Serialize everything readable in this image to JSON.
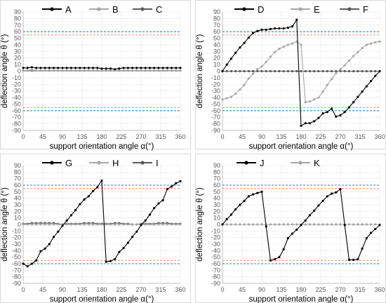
{
  "chart_data": [
    {
      "type": "line",
      "xlabel": "support orientation angle α(°)",
      "ylabel": "deflection angle θ (°)",
      "xlim": [
        0,
        360
      ],
      "ylim": [
        -90,
        90
      ],
      "xticks": [
        "0",
        "45",
        "90",
        "135",
        "180",
        "225",
        "270",
        "315",
        "360"
      ],
      "yticks": [
        "90",
        "80",
        "70",
        "60",
        "50",
        "40",
        "30",
        "20",
        "10",
        "0",
        "-10",
        "-20",
        "-30",
        "-40",
        "-50",
        "-60",
        "-70",
        "-80",
        "-90"
      ],
      "reference_lines": [
        {
          "y": 60,
          "color": "#2e86c1"
        },
        {
          "y": 55,
          "color": "#f39c6b"
        },
        {
          "y": -55,
          "color": "#f39c6b"
        },
        {
          "y": -60,
          "color": "#2e86c1"
        }
      ],
      "legend_position": "top",
      "series": [
        {
          "name": "A",
          "color": "#000000",
          "x": [
            0,
            10,
            20,
            30,
            40,
            50,
            60,
            70,
            80,
            90,
            100,
            110,
            120,
            130,
            140,
            150,
            160,
            170,
            180,
            190,
            200,
            210,
            220,
            230,
            240,
            250,
            260,
            270,
            280,
            290,
            300,
            310,
            320,
            330,
            340,
            350,
            360
          ],
          "y": [
            5,
            5,
            6,
            5,
            5,
            5,
            5,
            5,
            5,
            5,
            5,
            5,
            5,
            5,
            5,
            5,
            5,
            5,
            4,
            4,
            4,
            3,
            4,
            5,
            5,
            5,
            5,
            5,
            5,
            5,
            5,
            5,
            5,
            5,
            5,
            5,
            5
          ]
        },
        {
          "name": "B",
          "color": "#a6a6a6",
          "x": [
            0,
            10,
            20,
            30,
            40,
            50,
            60,
            70,
            80,
            90,
            100,
            110,
            120,
            130,
            140,
            150,
            160,
            170,
            180,
            190,
            200,
            210,
            220,
            230,
            240,
            250,
            260,
            270,
            280,
            290,
            300,
            310,
            320,
            330,
            340,
            350,
            360
          ],
          "y": [
            1,
            1,
            2,
            1,
            1,
            1,
            1,
            1,
            1,
            1,
            1,
            1,
            1,
            1,
            1,
            1,
            1,
            1,
            1,
            1,
            1,
            1,
            1,
            1,
            1,
            1,
            1,
            1,
            1,
            1,
            1,
            1,
            1,
            1,
            1,
            1,
            1
          ]
        },
        {
          "name": "C",
          "color": "#595959",
          "x": [
            0,
            10,
            20,
            30,
            40,
            50,
            60,
            70,
            80,
            90,
            100,
            110,
            120,
            130,
            140,
            150,
            160,
            170,
            180,
            190,
            200,
            210,
            220,
            230,
            240,
            250,
            260,
            270,
            280,
            290,
            300,
            310,
            320,
            330,
            340,
            350,
            360
          ],
          "y": [
            1,
            1,
            1,
            1,
            1,
            1,
            1,
            1,
            1,
            1,
            1,
            1,
            1,
            1,
            1,
            1,
            1,
            1,
            1,
            1,
            1,
            1,
            1,
            1,
            1,
            1,
            1,
            1,
            1,
            1,
            1,
            1,
            1,
            1,
            1,
            1,
            1
          ]
        }
      ]
    },
    {
      "type": "line",
      "xlabel": "support orientation angle α(°)",
      "ylabel": "deflection angle θ (°)",
      "xlim": [
        0,
        360
      ],
      "ylim": [
        -90,
        90
      ],
      "xticks": [
        "0",
        "45",
        "90",
        "135",
        "180",
        "225",
        "270",
        "315",
        "360"
      ],
      "yticks": [
        "90",
        "80",
        "70",
        "60",
        "50",
        "40",
        "30",
        "20",
        "10",
        "0",
        "-10",
        "-20",
        "-30",
        "-40",
        "-50",
        "-60",
        "-70",
        "-80",
        "-90"
      ],
      "reference_lines": [
        {
          "y": 60,
          "color": "#2e86c1"
        },
        {
          "y": 55,
          "color": "#f39c6b"
        },
        {
          "y": -55,
          "color": "#f39c6b"
        },
        {
          "y": -60,
          "color": "#2e86c1"
        }
      ],
      "legend_position": "top",
      "series": [
        {
          "name": "D",
          "color": "#000000",
          "x": [
            0,
            10,
            20,
            30,
            40,
            50,
            60,
            70,
            80,
            90,
            100,
            110,
            120,
            130,
            140,
            150,
            160,
            170,
            180,
            190,
            200,
            210,
            220,
            230,
            240,
            250,
            260,
            270,
            280,
            290,
            300,
            310,
            320,
            330,
            340,
            350,
            360
          ],
          "y": [
            0,
            10,
            19,
            28,
            36,
            43,
            51,
            58,
            61,
            63,
            63,
            64,
            65,
            65,
            65,
            66,
            68,
            78,
            -83,
            -79,
            -79,
            -76,
            -71,
            -64,
            -62,
            -57,
            -69,
            -67,
            -62,
            -55,
            -47,
            -39,
            -31,
            -23,
            -15,
            -7,
            0
          ]
        },
        {
          "name": "E",
          "color": "#a6a6a6",
          "x": [
            0,
            10,
            20,
            30,
            40,
            50,
            60,
            70,
            80,
            90,
            100,
            110,
            120,
            130,
            140,
            150,
            160,
            170,
            180,
            190,
            200,
            210,
            220,
            230,
            240,
            250,
            260,
            270,
            280,
            290,
            300,
            310,
            320,
            330,
            340,
            350,
            360
          ],
          "y": [
            -43,
            -41,
            -39,
            -34,
            -28,
            -21,
            -11,
            -4,
            3,
            7,
            14,
            22,
            29,
            34,
            37,
            40,
            42,
            45,
            40,
            -47,
            -46,
            -43,
            -40,
            -31,
            -21,
            -12,
            -3,
            3,
            9,
            16,
            23,
            29,
            35,
            40,
            42,
            44,
            45
          ]
        },
        {
          "name": "F",
          "color": "#595959",
          "x": [
            0,
            10,
            20,
            30,
            40,
            50,
            60,
            70,
            80,
            90,
            100,
            110,
            120,
            130,
            140,
            150,
            160,
            170,
            180,
            190,
            200,
            210,
            220,
            230,
            240,
            250,
            260,
            270,
            280,
            290,
            300,
            310,
            320,
            330,
            340,
            350,
            360
          ],
          "y": [
            0,
            0,
            0,
            0,
            0,
            0,
            0,
            0,
            0,
            0,
            0,
            0,
            0,
            0,
            0,
            0,
            0,
            0,
            0,
            0,
            0,
            0,
            0,
            0,
            0,
            0,
            0,
            0,
            0,
            0,
            0,
            0,
            0,
            0,
            0,
            0,
            0
          ]
        }
      ]
    },
    {
      "type": "line",
      "xlabel": "support orientation angle α(°)",
      "ylabel": "deflection angle θ (°)",
      "xlim": [
        0,
        360
      ],
      "ylim": [
        -90,
        90
      ],
      "xticks": [
        "0",
        "45",
        "90",
        "135",
        "180",
        "225",
        "270",
        "315",
        "360"
      ],
      "yticks": [
        "90",
        "80",
        "70",
        "60",
        "50",
        "40",
        "30",
        "20",
        "10",
        "0",
        "-10",
        "-20",
        "-30",
        "-40",
        "-50",
        "-60",
        "-70",
        "-80",
        "-90"
      ],
      "reference_lines": [
        {
          "y": 60,
          "color": "#2e86c1"
        },
        {
          "y": 55,
          "color": "#f39c6b"
        },
        {
          "y": -55,
          "color": "#f39c6b"
        },
        {
          "y": -60,
          "color": "#2e86c1"
        }
      ],
      "legend_position": "top",
      "series": [
        {
          "name": "G",
          "color": "#000000",
          "x": [
            0,
            10,
            20,
            30,
            40,
            50,
            60,
            70,
            80,
            90,
            100,
            110,
            120,
            130,
            140,
            150,
            160,
            170,
            180,
            190,
            200,
            210,
            220,
            230,
            240,
            250,
            260,
            270,
            280,
            290,
            300,
            310,
            320,
            330,
            340,
            350,
            360
          ],
          "y": [
            -60,
            -64,
            -60,
            -55,
            -41,
            -37,
            -30,
            -19,
            -11,
            -2,
            6,
            14,
            22,
            31,
            38,
            43,
            51,
            57,
            67,
            -57,
            -56,
            -53,
            -42,
            -36,
            -28,
            -19,
            -11,
            -1,
            6,
            15,
            25,
            32,
            37,
            54,
            58,
            63,
            66
          ]
        },
        {
          "name": "H",
          "color": "#a6a6a6",
          "x": [
            0,
            10,
            20,
            30,
            40,
            50,
            60,
            70,
            80,
            90,
            100,
            110,
            120,
            130,
            140,
            150,
            160,
            170,
            180,
            190,
            200,
            210,
            220,
            230,
            240,
            250,
            260,
            270,
            280,
            290,
            300,
            310,
            320,
            330,
            340,
            350,
            360
          ],
          "y": [
            0,
            0,
            0,
            0,
            0,
            0,
            0,
            0,
            0,
            0,
            0,
            0,
            0,
            0,
            0,
            0,
            0,
            0,
            0,
            0,
            0,
            0,
            0,
            0,
            0,
            0,
            0,
            0,
            0,
            0,
            0,
            0,
            0,
            0,
            0,
            0,
            0
          ]
        },
        {
          "name": "I",
          "color": "#595959",
          "x": [
            0,
            10,
            20,
            30,
            40,
            50,
            60,
            70,
            80,
            90,
            100,
            110,
            120,
            130,
            140,
            150,
            160,
            170,
            180,
            190,
            200,
            210,
            220,
            230,
            240,
            250,
            260,
            270,
            280,
            290,
            300,
            310,
            320,
            330,
            340,
            350,
            360
          ],
          "y": [
            1,
            1,
            2,
            2,
            2,
            2,
            2,
            2,
            1,
            0,
            1,
            1,
            1,
            1,
            2,
            2,
            2,
            1,
            1,
            1,
            1,
            2,
            2,
            1,
            1,
            0,
            0,
            1,
            1,
            1,
            1,
            2,
            2,
            2,
            1,
            1,
            1
          ]
        }
      ]
    },
    {
      "type": "line",
      "xlabel": "support orientation angle α(°)",
      "ylabel": "deflection angle θ (°)",
      "xlim": [
        0,
        360
      ],
      "ylim": [
        -90,
        90
      ],
      "xticks": [
        "0",
        "45",
        "90",
        "135",
        "180",
        "225",
        "270",
        "315",
        "360"
      ],
      "yticks": [
        "90",
        "80",
        "70",
        "60",
        "50",
        "40",
        "30",
        "20",
        "10",
        "0",
        "-10",
        "-20",
        "-30",
        "-40",
        "-50",
        "-60",
        "-70",
        "-80",
        "-90"
      ],
      "reference_lines": [
        {
          "y": 60,
          "color": "#2e86c1"
        },
        {
          "y": 55,
          "color": "#f39c6b"
        },
        {
          "y": -55,
          "color": "#f39c6b"
        },
        {
          "y": -60,
          "color": "#2e86c1"
        }
      ],
      "legend_position": "top",
      "series": [
        {
          "name": "J",
          "color": "#000000",
          "x": [
            0,
            10,
            20,
            30,
            40,
            50,
            60,
            70,
            80,
            90,
            100,
            110,
            120,
            130,
            140,
            150,
            160,
            170,
            180,
            190,
            200,
            210,
            220,
            230,
            240,
            250,
            260,
            270,
            280,
            290,
            300,
            310,
            320,
            330,
            340,
            350,
            360
          ],
          "y": [
            0,
            8,
            15,
            23,
            30,
            36,
            43,
            46,
            48,
            50,
            -3,
            -55,
            -53,
            -50,
            -38,
            -21,
            -14,
            -8,
            -1,
            6,
            14,
            21,
            29,
            36,
            43,
            47,
            49,
            54,
            -1,
            -54,
            -54,
            -53,
            -37,
            -21,
            -13,
            -7,
            -1
          ]
        },
        {
          "name": "K",
          "color": "#a6a6a6",
          "x": [
            0,
            10,
            20,
            30,
            40,
            50,
            60,
            70,
            80,
            90,
            100,
            110,
            120,
            130,
            140,
            150,
            160,
            170,
            180,
            190,
            200,
            210,
            220,
            230,
            240,
            250,
            260,
            270,
            280,
            290,
            300,
            310,
            320,
            330,
            340,
            350,
            360
          ],
          "y": [
            0,
            0,
            0,
            0,
            0,
            0,
            0,
            0,
            0,
            0,
            0,
            0,
            0,
            0,
            0,
            0,
            0,
            0,
            0,
            0,
            0,
            0,
            0,
            0,
            0,
            0,
            0,
            0,
            0,
            0,
            0,
            0,
            0,
            0,
            0,
            0,
            0
          ]
        }
      ]
    }
  ]
}
